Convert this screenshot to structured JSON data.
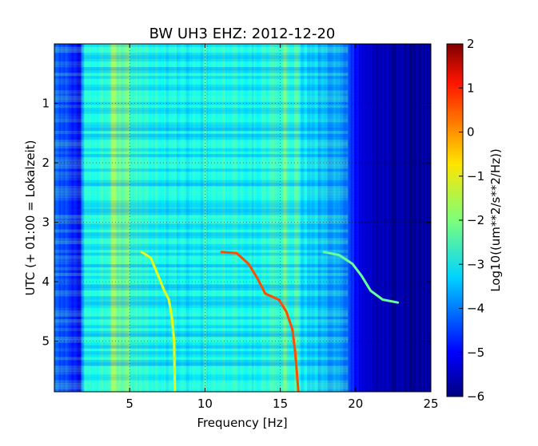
{
  "chart_data": {
    "type": "heatmap",
    "title": "BW UH3 EHZ: 2012-12-20",
    "xlabel": "Frequency [Hz]",
    "ylabel": "UTC (+ 01:00 = Lokalzeit)",
    "xlim": [
      0,
      25
    ],
    "ylim": [
      5.85,
      0
    ],
    "x_ticks": [
      5,
      10,
      15,
      20,
      25
    ],
    "y_ticks": [
      1,
      2,
      3,
      4,
      5
    ],
    "colorbar": {
      "label": "Log10((um**2/s**2/Hz))",
      "range": [
        -6,
        2
      ],
      "ticks": [
        2,
        1,
        0,
        -1,
        -2,
        -3,
        -4,
        -5,
        -6
      ],
      "colormap": "jet"
    },
    "grid": true,
    "baseline_by_frequency": [
      [
        0,
        -4.2
      ],
      [
        1,
        -4.6
      ],
      [
        1.6,
        -5.0
      ],
      [
        2.0,
        -2.9
      ],
      [
        3.5,
        -2.7
      ],
      [
        4.0,
        -2.0
      ],
      [
        5,
        -2.5
      ],
      [
        6,
        -2.8
      ],
      [
        8,
        -3.0
      ],
      [
        10,
        -3.0
      ],
      [
        11.5,
        -2.8
      ],
      [
        13,
        -3.0
      ],
      [
        15,
        -2.6
      ],
      [
        16,
        -3.0
      ],
      [
        17.5,
        -3.4
      ],
      [
        19.3,
        -3.9
      ],
      [
        20,
        -5.0
      ],
      [
        21,
        -5.6
      ],
      [
        25,
        -5.8
      ]
    ],
    "stripe_features": [
      {
        "x": 1.7,
        "value": -5.2
      },
      {
        "x": 3.9,
        "value": -1.6
      },
      {
        "x": 4.9,
        "value": -2.0
      },
      {
        "x": 10.0,
        "value": -2.3
      },
      {
        "x": 15.3,
        "value": -1.9
      },
      {
        "x": 16.1,
        "value": -2.2
      }
    ],
    "chirp_series": [
      {
        "value": -1.2,
        "points": [
          [
            5.8,
            3.5
          ],
          [
            6.4,
            3.6
          ],
          [
            6.9,
            3.9
          ],
          [
            7.3,
            4.15
          ],
          [
            7.6,
            4.3
          ],
          [
            7.8,
            4.6
          ],
          [
            7.95,
            5.0
          ],
          [
            8.0,
            5.85
          ]
        ]
      },
      {
        "value": 0.4,
        "points": [
          [
            11.1,
            3.5
          ],
          [
            12.1,
            3.52
          ],
          [
            12.9,
            3.7
          ],
          [
            13.5,
            3.95
          ],
          [
            14.0,
            4.2
          ],
          [
            14.9,
            4.3
          ],
          [
            15.4,
            4.5
          ],
          [
            15.8,
            4.8
          ],
          [
            16.0,
            5.2
          ],
          [
            16.2,
            5.85
          ]
        ]
      },
      {
        "value": -2.2,
        "points": [
          [
            17.9,
            3.5
          ],
          [
            18.9,
            3.55
          ],
          [
            19.8,
            3.7
          ],
          [
            20.4,
            3.9
          ],
          [
            21.0,
            4.15
          ],
          [
            21.8,
            4.3
          ],
          [
            22.8,
            4.35
          ]
        ]
      }
    ]
  }
}
